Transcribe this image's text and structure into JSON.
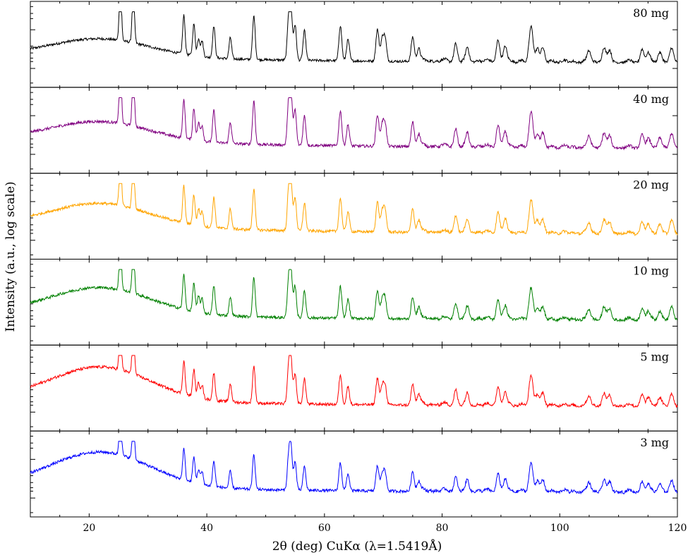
{
  "chart_data": {
    "type": "line",
    "title": "",
    "xlabel": "2θ (deg) CuKα (λ=1.5419Å)",
    "ylabel": "Intensity (a.u., log scale)",
    "xlim": [
      10,
      120
    ],
    "yscale": "log",
    "xticks": [
      20,
      40,
      60,
      80,
      100,
      120
    ],
    "xtick_labels": [
      "20",
      "40",
      "60",
      "80",
      "100",
      "120"
    ],
    "grid": false,
    "legend": "none",
    "peaks_2theta": [
      25.3,
      27.5,
      36.1,
      37.8,
      38.6,
      39.2,
      41.2,
      44.0,
      48.0,
      53.9,
      54.3,
      55.0,
      56.6,
      62.7,
      64.0,
      69.0,
      69.8,
      70.3,
      75.0,
      76.0,
      82.3,
      84.3,
      89.5,
      90.7,
      95.0,
      95.3,
      96.2,
      97.1,
      105.0,
      107.5,
      108.5,
      114.0,
      115.0,
      117.0,
      119.0
    ],
    "series": [
      {
        "name": "80 mg",
        "color": "#000000",
        "hump_level": 0.26,
        "baseline": 0.13,
        "peak_scale": 1.0,
        "noise": 0.018
      },
      {
        "name": "40 mg",
        "color": "#800080",
        "hump_level": 0.28,
        "baseline": 0.16,
        "peak_scale": 1.0,
        "noise": 0.02
      },
      {
        "name": "20 mg",
        "color": "#ffa500",
        "hump_level": 0.33,
        "baseline": 0.17,
        "peak_scale": 0.95,
        "noise": 0.02
      },
      {
        "name": "10 mg",
        "color": "#008000",
        "hump_level": 0.38,
        "baseline": 0.14,
        "peak_scale": 0.9,
        "noise": 0.02
      },
      {
        "name": "5 mg",
        "color": "#ff0000",
        "hump_level": 0.48,
        "baseline": 0.13,
        "peak_scale": 0.85,
        "noise": 0.02
      },
      {
        "name": "3 mg",
        "color": "#0000ff",
        "hump_level": 0.5,
        "baseline": 0.12,
        "peak_scale": 0.8,
        "noise": 0.02
      }
    ]
  }
}
